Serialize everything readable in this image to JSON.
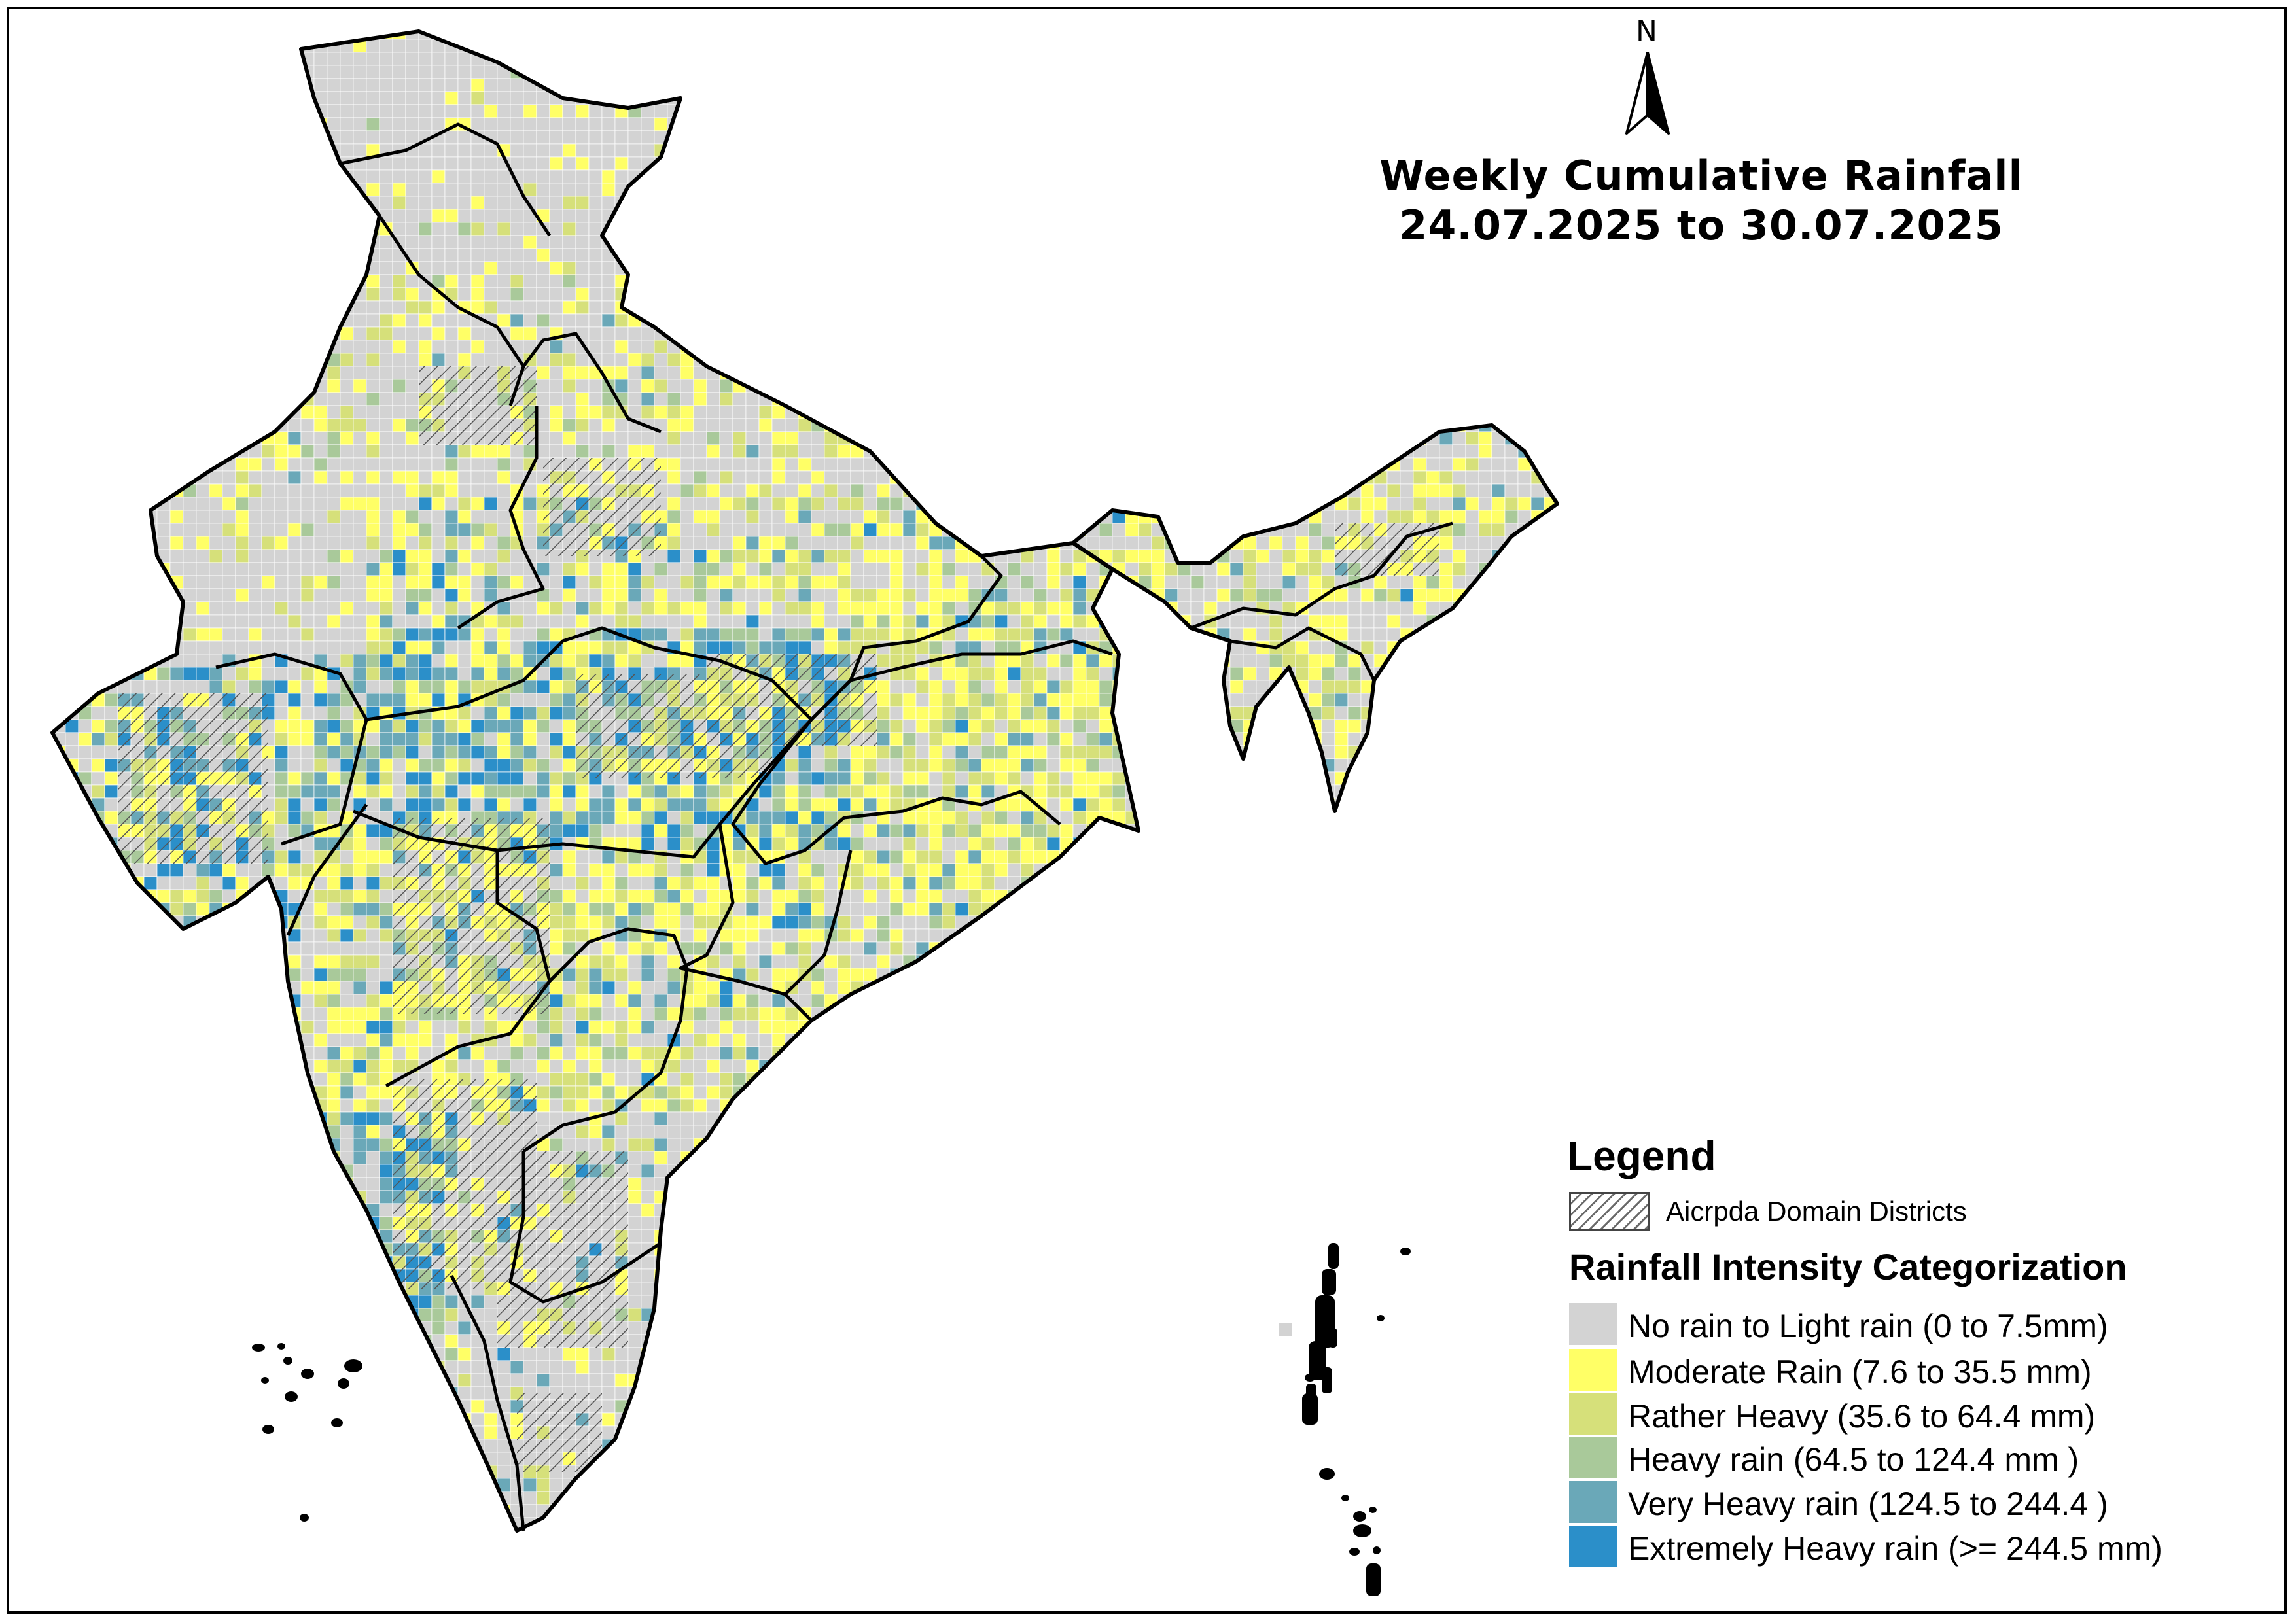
{
  "title": {
    "line1": "Weekly Cumulative Rainfall",
    "line2": "24.07.2025 to 30.07.2025"
  },
  "north": "N",
  "legend": {
    "title": "Legend",
    "domain_label": "Aicrpda Domain Districts",
    "categorization_title": "Rainfall Intensity Categorization",
    "categories": [
      {
        "label": "No rain to Light rain (0 to 7.5mm)",
        "color": "#d3d3d3"
      },
      {
        "label": "Moderate Rain (7.6 to 35.5 mm)",
        "color": "#ffff66"
      },
      {
        "label": "Rather Heavy (35.6 to 64.4 mm)",
        "color": "#d6e07a"
      },
      {
        "label": "Heavy rain (64.5 to 124.4 mm )",
        "color": "#a9c99a"
      },
      {
        "label": "Very Heavy rain (124.5 to 244.4 )",
        "color": "#6aa8b8"
      },
      {
        "label": "Extremely Heavy rain  (>= 244.5 mm)",
        "color": "#2b8fc9"
      }
    ]
  }
}
